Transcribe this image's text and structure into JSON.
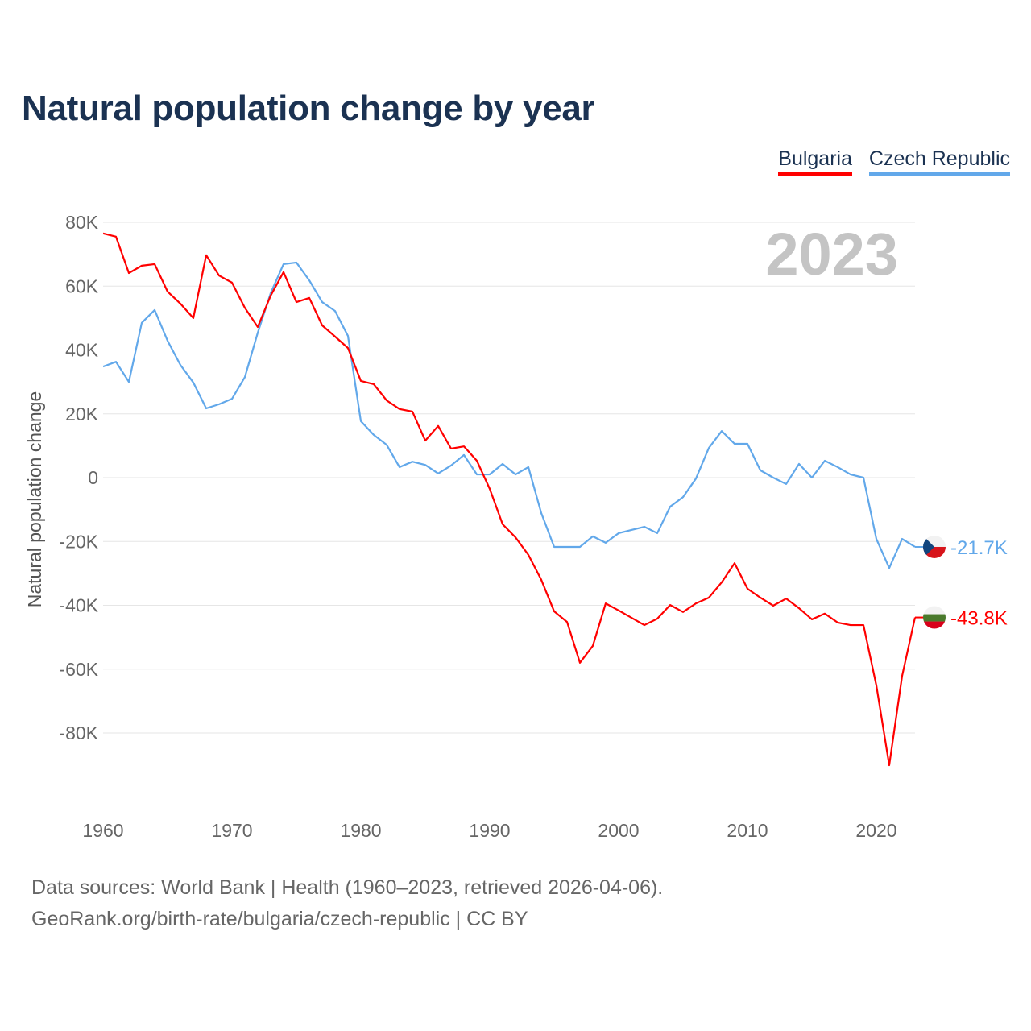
{
  "title": "Natural population change by year",
  "legend": [
    {
      "label": "Bulgaria",
      "color": "#ff0000"
    },
    {
      "label": "Czech Republic",
      "color": "#62a8ea"
    }
  ],
  "year_watermark": "2023",
  "sources": {
    "line1": "Data sources: World Bank | Health (1960–2023, retrieved 2026-04-06).",
    "line2": "GeoRank.org/birth-rate/bulgaria/czech-republic | CC BY"
  },
  "chart_data": {
    "type": "line",
    "title": "Natural population change by year",
    "xlabel": "",
    "ylabel": "Natural population change",
    "xlim": [
      1960,
      2023
    ],
    "ylim": [
      -100000,
      80000
    ],
    "grid": true,
    "legend_position": "top-right",
    "x_ticks": [
      1960,
      1970,
      1980,
      1990,
      2000,
      2010,
      2020
    ],
    "x_tick_labels": [
      "1960",
      "1970",
      "1980",
      "1990",
      "2000",
      "2010",
      "2020"
    ],
    "y_ticks": [
      80000,
      60000,
      40000,
      20000,
      0,
      -20000,
      -40000,
      -60000,
      -80000
    ],
    "y_tick_labels": [
      "80K",
      "60K",
      "40K",
      "20K",
      "0",
      "-20K",
      "-40K",
      "-60K",
      "-80K"
    ],
    "x": [
      1960,
      1961,
      1962,
      1963,
      1964,
      1965,
      1966,
      1967,
      1968,
      1969,
      1970,
      1971,
      1972,
      1973,
      1974,
      1975,
      1976,
      1977,
      1978,
      1979,
      1980,
      1981,
      1982,
      1983,
      1984,
      1985,
      1986,
      1987,
      1988,
      1989,
      1990,
      1991,
      1992,
      1993,
      1994,
      1995,
      1996,
      1997,
      1998,
      1999,
      2000,
      2001,
      2002,
      2003,
      2004,
      2005,
      2006,
      2007,
      2008,
      2009,
      2010,
      2011,
      2012,
      2013,
      2014,
      2015,
      2016,
      2017,
      2018,
      2019,
      2020,
      2021,
      2022,
      2023
    ],
    "series": [
      {
        "name": "Bulgaria",
        "color": "#ff0000",
        "end_label": "-43.8K",
        "values": [
          76500,
          75500,
          64100,
          66400,
          66900,
          58300,
          54500,
          50000,
          69700,
          63300,
          61100,
          53200,
          47200,
          57000,
          64400,
          55000,
          56300,
          47700,
          44200,
          40600,
          30300,
          29300,
          24200,
          21500,
          20700,
          11600,
          16200,
          9100,
          9800,
          5300,
          -3500,
          -14600,
          -18700,
          -24200,
          -32000,
          -41900,
          -45200,
          -58000,
          -52700,
          -39400,
          -41600,
          -43900,
          -46200,
          -44200,
          -39900,
          -42100,
          -39400,
          -37600,
          -32800,
          -26800,
          -34800,
          -37600,
          -40100,
          -37900,
          -40900,
          -44400,
          -42600,
          -45400,
          -46200,
          -46200,
          -65100,
          -90100,
          -62100,
          -43800
        ]
      },
      {
        "name": "Czech Republic",
        "color": "#62a8ea",
        "end_label": "-21.7K",
        "values": [
          34800,
          36300,
          30000,
          48500,
          52500,
          42900,
          35300,
          29800,
          21700,
          23000,
          24700,
          31500,
          45400,
          57800,
          66900,
          67400,
          61800,
          55000,
          52200,
          44400,
          17700,
          13400,
          10300,
          3300,
          5000,
          4000,
          1300,
          3800,
          7100,
          1000,
          1000,
          4300,
          1000,
          3300,
          -11100,
          -21700,
          -21700,
          -21700,
          -18400,
          -20400,
          -17400,
          -16400,
          -15400,
          -17400,
          -9100,
          -6100,
          -300,
          9300,
          14600,
          10600,
          10600,
          2300,
          0,
          -2000,
          4300,
          0,
          5300,
          3300,
          1000,
          0,
          -19200,
          -28300,
          -19200,
          -21700
        ]
      }
    ]
  }
}
